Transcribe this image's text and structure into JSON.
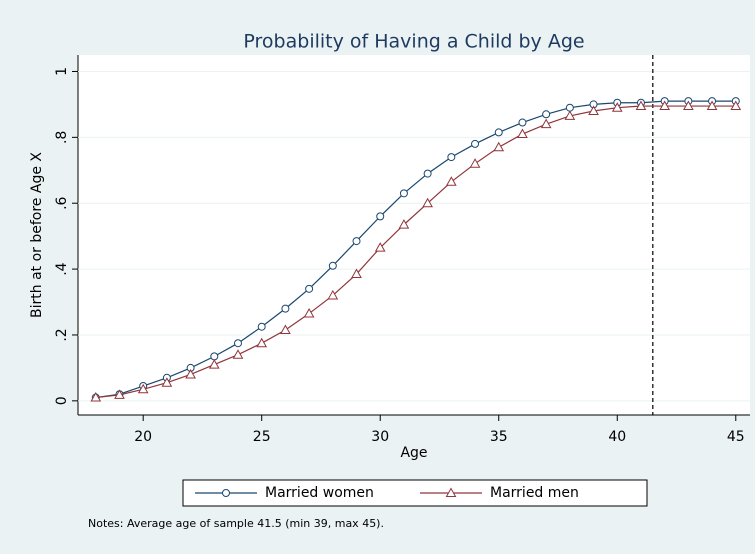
{
  "chart_data": {
    "type": "line",
    "title": "Probability of Having a Child by Age",
    "x_label": "Age",
    "y_label": "Birth at or before Age X",
    "note": "Notes: Average age of sample 41.5 (min 39, max 45).",
    "x": [
      18,
      19,
      20,
      21,
      22,
      23,
      24,
      25,
      26,
      27,
      28,
      29,
      30,
      31,
      32,
      33,
      34,
      35,
      36,
      37,
      38,
      39,
      40,
      41,
      42,
      43,
      44,
      45
    ],
    "series": [
      {
        "name": "Married women",
        "color": "#1a476f",
        "marker": "circle",
        "values": [
          0.01,
          0.02,
          0.045,
          0.07,
          0.1,
          0.135,
          0.175,
          0.225,
          0.28,
          0.34,
          0.41,
          0.485,
          0.56,
          0.63,
          0.69,
          0.74,
          0.78,
          0.815,
          0.845,
          0.87,
          0.89,
          0.9,
          0.905,
          0.905,
          0.91,
          0.91,
          0.91,
          0.91
        ]
      },
      {
        "name": "Married men",
        "color": "#90353b",
        "marker": "triangle",
        "values": [
          0.01,
          0.018,
          0.035,
          0.055,
          0.08,
          0.11,
          0.14,
          0.175,
          0.215,
          0.265,
          0.32,
          0.385,
          0.465,
          0.535,
          0.6,
          0.665,
          0.72,
          0.77,
          0.81,
          0.84,
          0.865,
          0.88,
          0.89,
          0.895,
          0.895,
          0.895,
          0.895,
          0.895
        ]
      }
    ],
    "reference_line_x": 41.5,
    "xlim": [
      17.25,
      45.6
    ],
    "ylim": [
      -0.043,
      1.05
    ],
    "xticks": [
      20,
      25,
      30,
      35,
      40,
      45
    ],
    "yticks": [
      0,
      {
        "value": 0.2,
        "label": ".2"
      },
      {
        "value": 0.4,
        "label": ".4"
      },
      {
        "value": 0.6,
        "label": ".6"
      },
      {
        "value": 0.8,
        "label": ".8"
      },
      1
    ],
    "grid": true,
    "legend": "bottom"
  }
}
